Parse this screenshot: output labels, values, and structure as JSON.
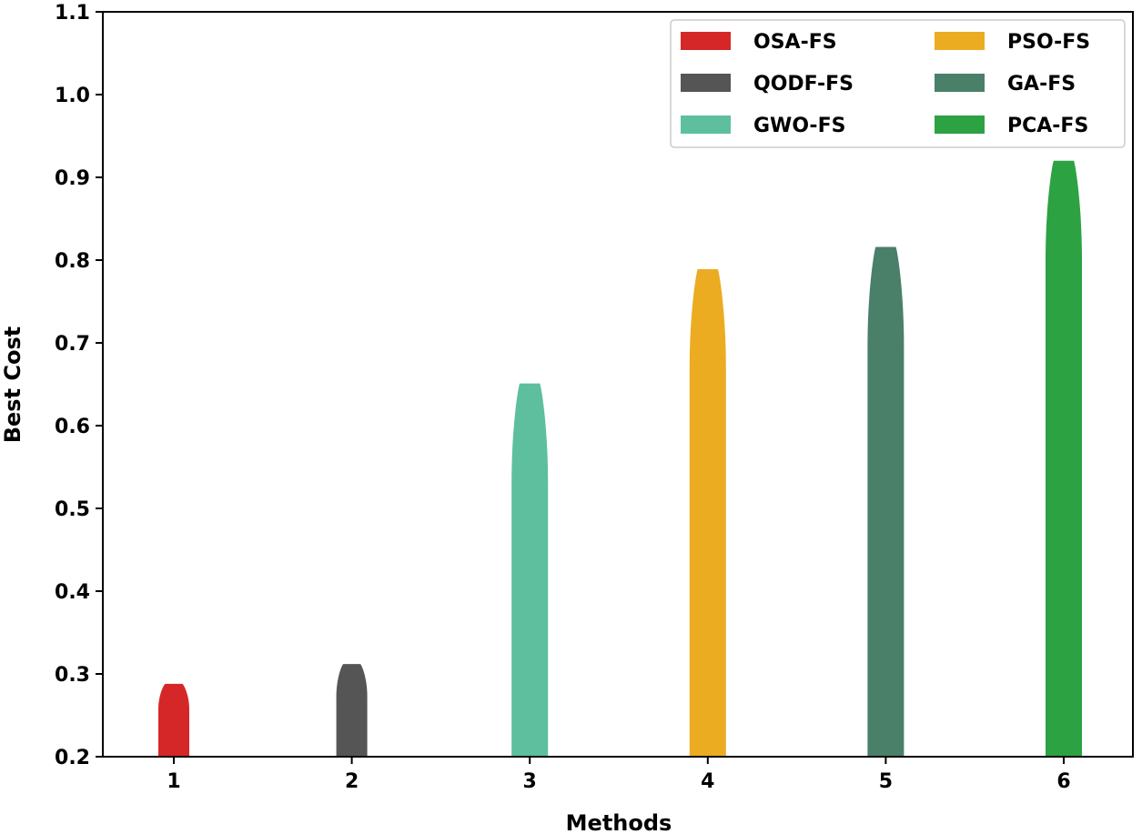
{
  "chart_data": {
    "type": "bar",
    "title": "",
    "xlabel": "Methods",
    "ylabel": "Best Cost",
    "categories": [
      "1",
      "2",
      "3",
      "4",
      "5",
      "6"
    ],
    "series": [
      {
        "name": "OSA-FS",
        "category": "1",
        "value": 0.288,
        "color": "#d62728"
      },
      {
        "name": "QODF-FS",
        "category": "2",
        "value": 0.312,
        "color": "#555555"
      },
      {
        "name": "GWO-FS",
        "category": "3",
        "value": 0.651,
        "color": "#5dbf9e"
      },
      {
        "name": "PSO-FS",
        "category": "4",
        "value": 0.789,
        "color": "#ebac22"
      },
      {
        "name": "GA-FS",
        "category": "5",
        "value": 0.816,
        "color": "#4a7f69"
      },
      {
        "name": "PCA-FS",
        "category": "6",
        "value": 0.92,
        "color": "#2ca243"
      }
    ],
    "ylim": [
      0.2,
      1.1
    ],
    "yticks": [
      "0.2",
      "0.3",
      "0.4",
      "0.5",
      "0.6",
      "0.7",
      "0.8",
      "0.9",
      "1.0",
      "1.1"
    ],
    "legend_position": "top-right",
    "legend_columns": 2,
    "legend_order": [
      "OSA-FS",
      "QODF-FS",
      "GWO-FS",
      "PSO-FS",
      "GA-FS",
      "PCA-FS"
    ],
    "grid": false
  }
}
